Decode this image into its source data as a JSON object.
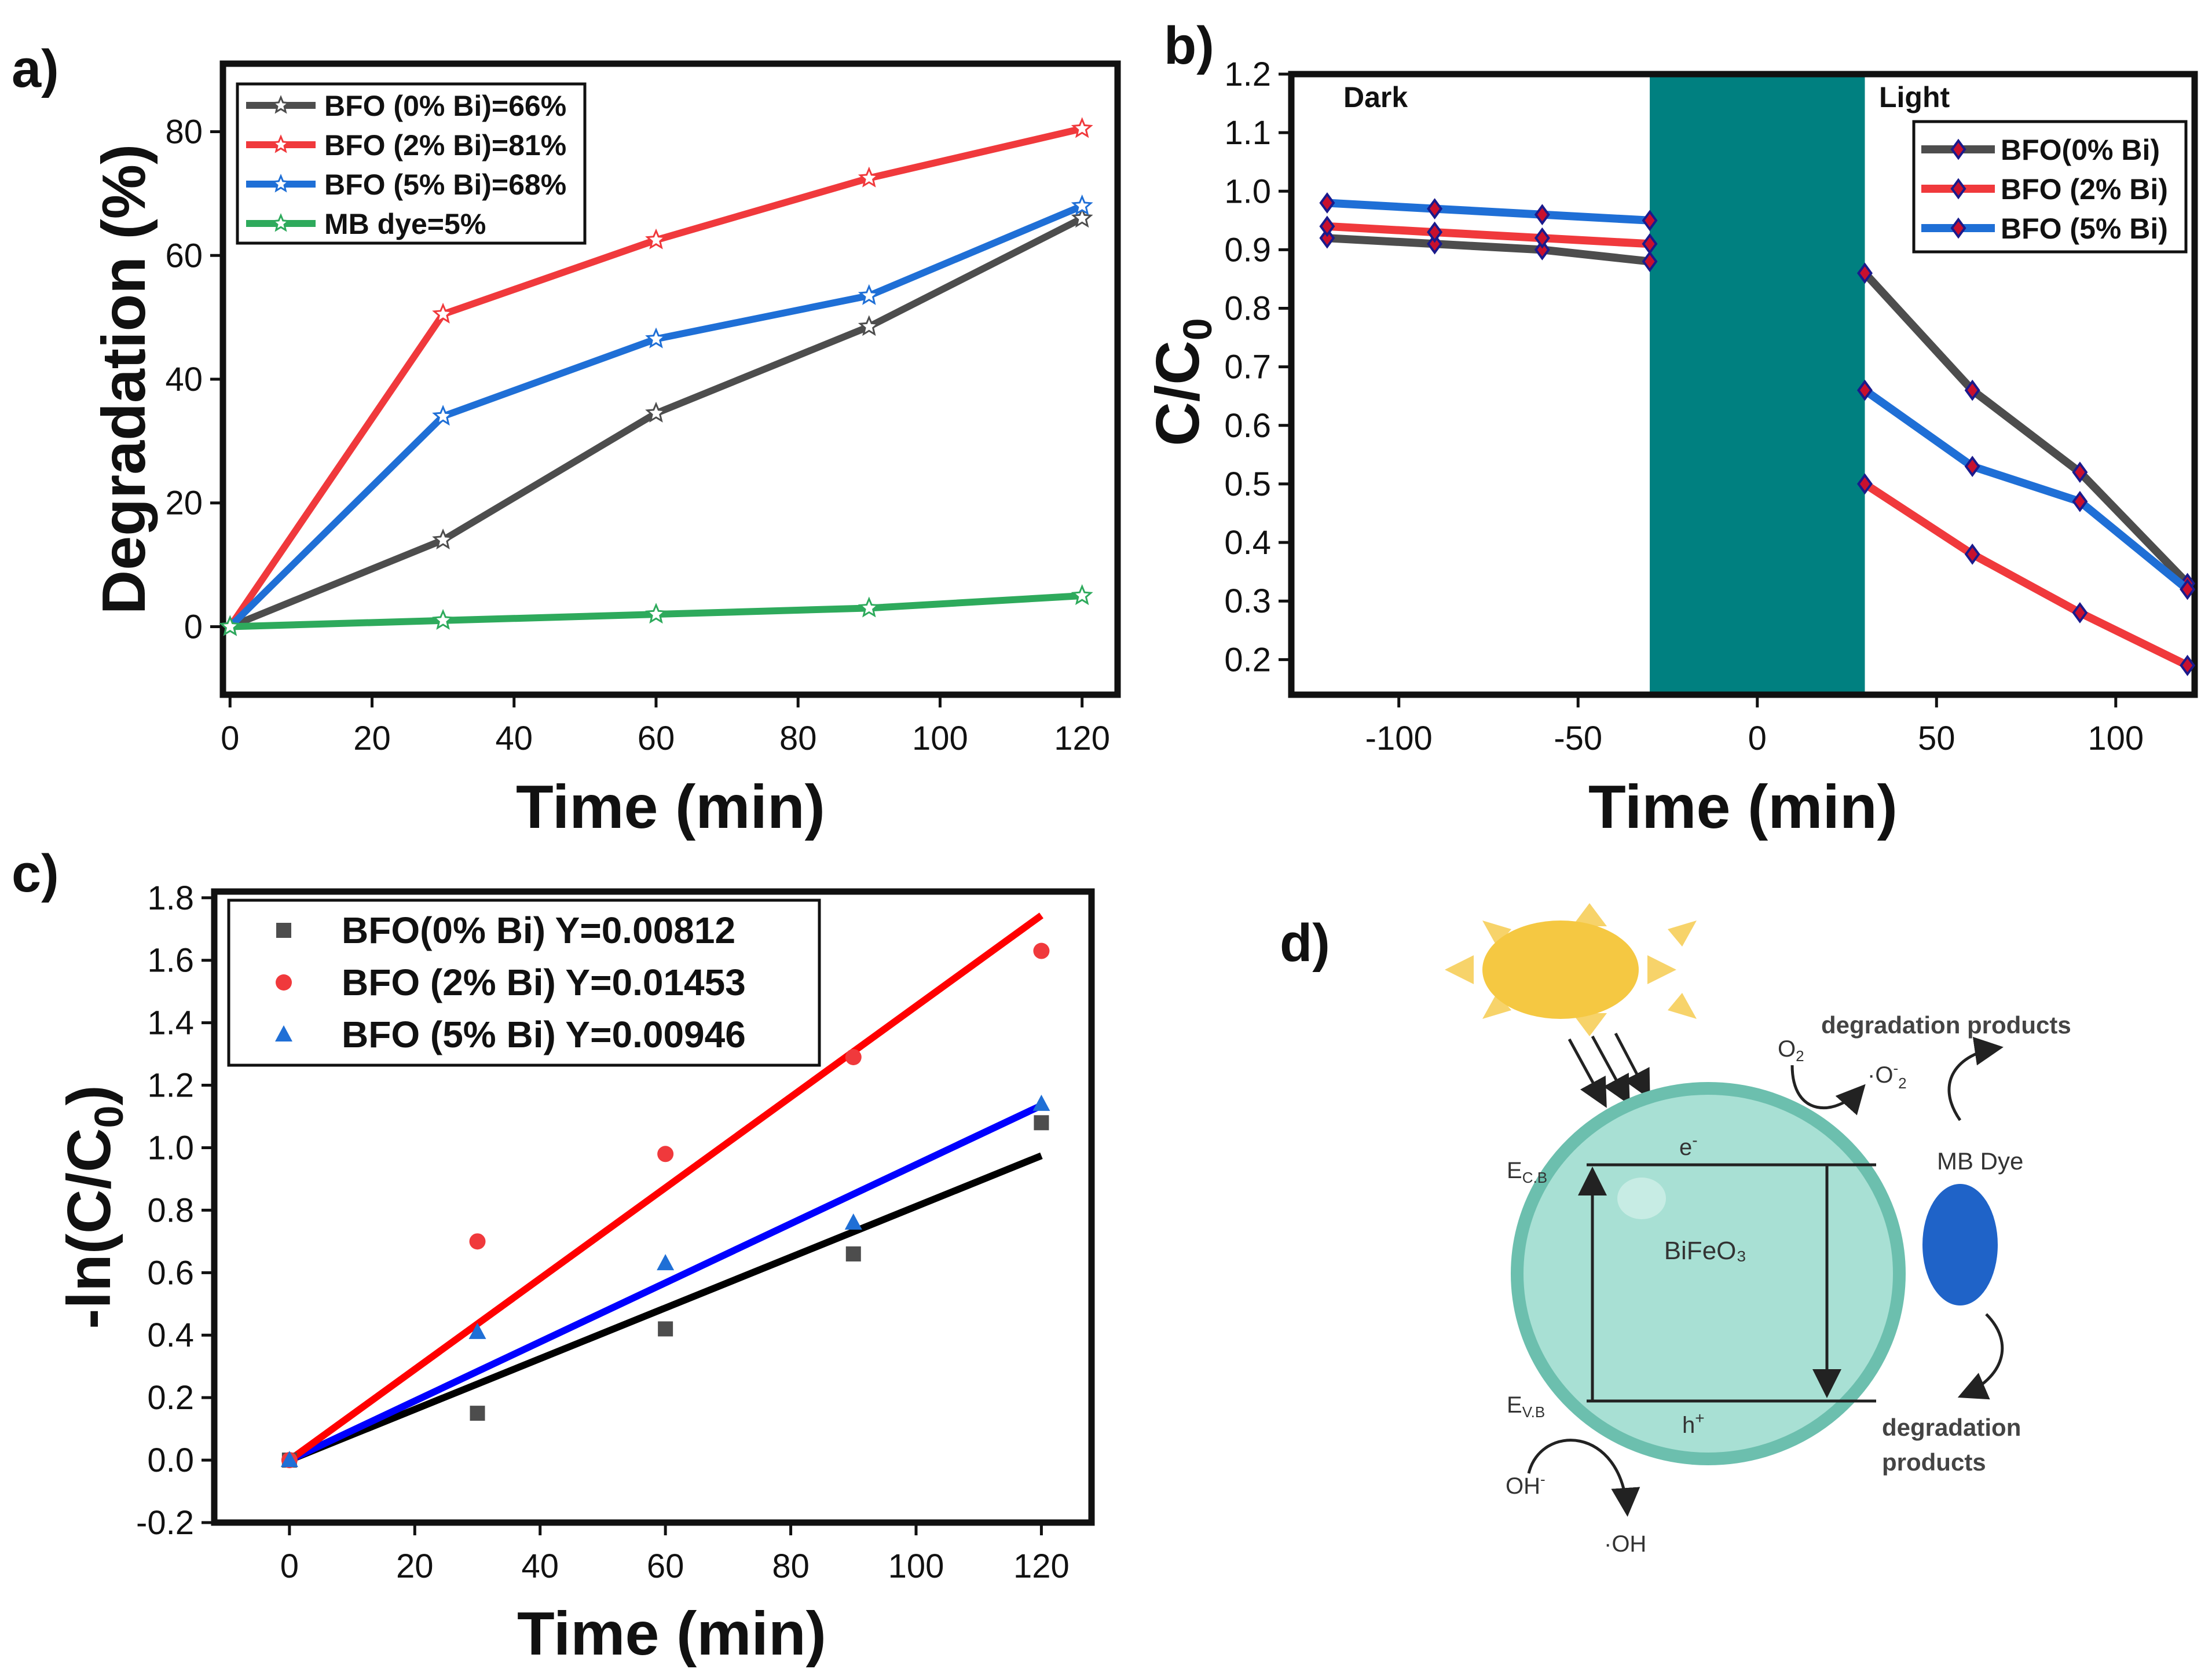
{
  "panel_labels": {
    "a": "a)",
    "b": "b)",
    "c": "c)",
    "d": "d)"
  },
  "colors": {
    "gray": "#4d4d4d",
    "red": "#f0393c",
    "blue": "#1f6fd6",
    "green": "#2eaa5c",
    "teal": "#008080",
    "black": "#000000",
    "pure_red": "#ff0000",
    "pure_blue": "#0000ff",
    "sun": "#f5c842",
    "sphere": "#9fdcd0",
    "sphere_edge": "#5fb8a6",
    "dye": "#1f63c8"
  },
  "chart_data": [
    {
      "id": "a",
      "type": "line",
      "xlabel": "Time (min)",
      "ylabel": "Degradation (%)",
      "xlim": [
        -1,
        125
      ],
      "ylim": [
        -11,
        91
      ],
      "xticks": [
        0,
        20,
        40,
        60,
        80,
        100,
        120
      ],
      "yticks": [
        0,
        20,
        40,
        60,
        80
      ],
      "legend": "top-left",
      "series": [
        {
          "name": "BFO (0% Bi)=66%",
          "color": "#4d4d4d",
          "x": [
            0,
            30,
            60,
            90,
            120
          ],
          "y": [
            0,
            14,
            34.5,
            48.5,
            66
          ]
        },
        {
          "name": "BFO (2% Bi)=81%",
          "color": "#f0393c",
          "x": [
            0,
            30,
            60,
            90,
            120
          ],
          "y": [
            0,
            50.5,
            62.5,
            72.5,
            80.5
          ]
        },
        {
          "name": "BFO (5% Bi)=68%",
          "color": "#1f6fd6",
          "x": [
            0,
            30,
            60,
            90,
            120
          ],
          "y": [
            0,
            34,
            46.5,
            53.5,
            68
          ]
        },
        {
          "name": "MB dye=5%",
          "color": "#2eaa5c",
          "x": [
            0,
            30,
            60,
            90,
            120
          ],
          "y": [
            0,
            1,
            2,
            3,
            5
          ]
        }
      ]
    },
    {
      "id": "b",
      "type": "line",
      "xlabel": "Time (min)",
      "ylabel": "C/C",
      "ylabel_sub": "0",
      "xlim": [
        -130,
        122
      ],
      "ylim": [
        0.14,
        1.2
      ],
      "xticks": [
        -100,
        -50,
        0,
        50,
        100
      ],
      "yticks": [
        0.2,
        0.3,
        0.4,
        0.5,
        0.6,
        0.7,
        0.8,
        0.9,
        1.0,
        1.1,
        1.2
      ],
      "ytick_labels": [
        "0.2",
        "0.3",
        "0.4",
        "0.5",
        "0.6",
        "0.7",
        "0.8",
        "0.9",
        "1.0",
        "1.1",
        "1.2"
      ],
      "dark_label": "Dark",
      "light_label": "Light",
      "band": [
        -30,
        30
      ],
      "legend": "top-right",
      "series": [
        {
          "name": "BFO(0% Bi)",
          "color": "#4d4d4d",
          "dark_x": [
            -120,
            -90,
            -60,
            -30
          ],
          "dark_y": [
            0.92,
            0.91,
            0.9,
            0.88
          ],
          "light_x": [
            30,
            60,
            90,
            120
          ],
          "light_y": [
            0.86,
            0.66,
            0.52,
            0.33
          ]
        },
        {
          "name": "BFO (2% Bi)",
          "color": "#f0393c",
          "dark_x": [
            -120,
            -90,
            -60,
            -30
          ],
          "dark_y": [
            0.94,
            0.93,
            0.92,
            0.91
          ],
          "light_x": [
            30,
            60,
            90,
            120
          ],
          "light_y": [
            0.5,
            0.38,
            0.28,
            0.19
          ]
        },
        {
          "name": "BFO (5% Bi)",
          "color": "#1f6fd6",
          "dark_x": [
            -120,
            -90,
            -60,
            -30
          ],
          "dark_y": [
            0.98,
            0.97,
            0.96,
            0.95
          ],
          "light_x": [
            30,
            60,
            90,
            120
          ],
          "light_y": [
            0.66,
            0.53,
            0.47,
            0.32
          ]
        }
      ]
    },
    {
      "id": "c",
      "type": "scatter",
      "xlabel": "Time (min)",
      "ylabel": "-ln(C/C",
      "ylabel_sub": "0",
      "ylabel_end": ")",
      "xlim": [
        -12,
        128
      ],
      "ylim": [
        -0.2,
        1.82
      ],
      "xticks": [
        0,
        20,
        40,
        60,
        80,
        100,
        120
      ],
      "yticks": [
        -0.2,
        0.0,
        0.2,
        0.4,
        0.6,
        0.8,
        1.0,
        1.2,
        1.4,
        1.6,
        1.8
      ],
      "ytick_labels": [
        "-0.2",
        "0.0",
        "0.2",
        "0.4",
        "0.6",
        "0.8",
        "1.0",
        "1.2",
        "1.4",
        "1.6",
        "1.8"
      ],
      "legend": "top-left",
      "series": [
        {
          "name": "BFO(0% Bi) Y=0.00812",
          "marker": "square",
          "color": "#4d4d4d",
          "line_color": "#000000",
          "slope": 0.00812,
          "x": [
            0,
            30,
            60,
            90,
            120
          ],
          "y": [
            0,
            0.15,
            0.42,
            0.66,
            1.08
          ]
        },
        {
          "name": "BFO (2% Bi) Y=0.01453",
          "marker": "circle",
          "color": "#f0393c",
          "line_color": "#ff0000",
          "slope": 0.01453,
          "x": [
            0,
            30,
            60,
            90,
            120
          ],
          "y": [
            0,
            0.7,
            0.98,
            1.29,
            1.63
          ]
        },
        {
          "name": "BFO (5% Bi) Y=0.00946",
          "marker": "triangle",
          "color": "#1f6fd6",
          "line_color": "#0000ff",
          "slope": 0.00946,
          "x": [
            0,
            30,
            60,
            90,
            120
          ],
          "y": [
            0,
            0.41,
            0.63,
            0.76,
            1.14
          ]
        }
      ]
    }
  ],
  "diagram": {
    "material": "BiFeO₃",
    "ecb": "E",
    "ecb_sub": "C.B",
    "evb": "E",
    "evb_sub": "V.B",
    "electron": "e",
    "electron_sup": "-",
    "hole": "h",
    "hole_sup": "+",
    "o2": "O",
    "o2_sub": "2",
    "superoxide": "·O",
    "superoxide_sup": "-",
    "superoxide_sub": "2",
    "degradation_top": "degradation products",
    "dye": "MB Dye",
    "degradation_bottom_1": "degradation",
    "degradation_bottom_2": "products",
    "oh_minus": "OH",
    "oh_minus_sup": "-",
    "oh_radical": "·OH"
  }
}
